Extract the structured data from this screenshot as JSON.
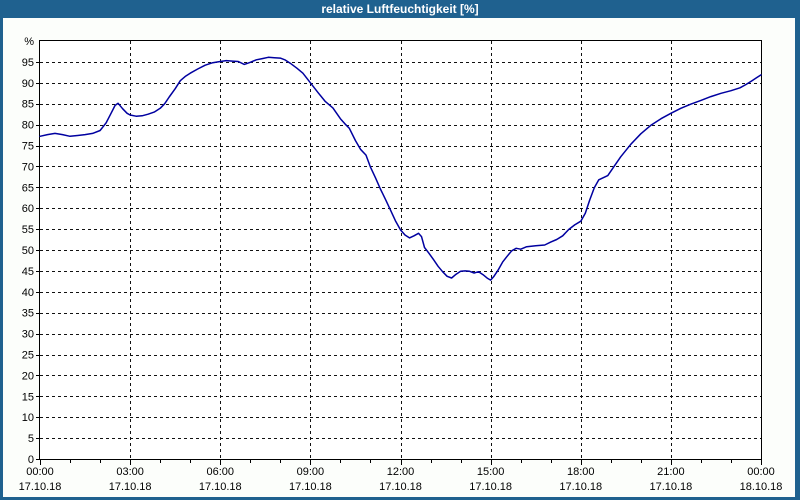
{
  "title": "relative Luftfeuchtigkeit [%]",
  "colors": {
    "titlebar": "#1f618f",
    "frame": "#1f618f",
    "window_bg": "#fcfefb",
    "plot_bg": "#ffffff",
    "grid": "#111111",
    "axis": "#000000",
    "line": "#0000a0",
    "title_text": "#ffffff"
  },
  "chart_data": {
    "type": "line",
    "title": "relative Luftfeuchtigkeit [%]",
    "xlabel": "",
    "ylabel": "%",
    "ylim": [
      0,
      100
    ],
    "xlim_hours": [
      0,
      24
    ],
    "grid": "dashed black: horizontal every 5 units, vertical every 3 hours",
    "legend": "none",
    "y_ticks": [
      0,
      5,
      10,
      15,
      20,
      25,
      30,
      35,
      40,
      45,
      50,
      55,
      60,
      65,
      70,
      75,
      80,
      85,
      90,
      95
    ],
    "x_ticks": [
      {
        "hour": 0,
        "time": "00:00",
        "date": "17.10.18"
      },
      {
        "hour": 3,
        "time": "03:00",
        "date": "17.10.18"
      },
      {
        "hour": 6,
        "time": "06:00",
        "date": "17.10.18"
      },
      {
        "hour": 9,
        "time": "09:00",
        "date": "17.10.18"
      },
      {
        "hour": 12,
        "time": "12:00",
        "date": "17.10.18"
      },
      {
        "hour": 15,
        "time": "15:00",
        "date": "17.10.18"
      },
      {
        "hour": 18,
        "time": "18:00",
        "date": "17.10.18"
      },
      {
        "hour": 21,
        "time": "21:00",
        "date": "17.10.18"
      },
      {
        "hour": 24,
        "time": "00:00",
        "date": "18.10.18"
      }
    ],
    "series": [
      {
        "name": "relative Luftfeuchtigkeit",
        "unit": "%",
        "color": "#0000a0",
        "points": [
          [
            0.0,
            77.2
          ],
          [
            0.25,
            77.6
          ],
          [
            0.5,
            77.9
          ],
          [
            0.75,
            77.6
          ],
          [
            1.0,
            77.2
          ],
          [
            1.25,
            77.4
          ],
          [
            1.5,
            77.6
          ],
          [
            1.75,
            77.9
          ],
          [
            2.0,
            78.6
          ],
          [
            2.2,
            80.4
          ],
          [
            2.35,
            82.5
          ],
          [
            2.5,
            84.6
          ],
          [
            2.6,
            85.1
          ],
          [
            2.75,
            83.8
          ],
          [
            2.9,
            82.7
          ],
          [
            3.0,
            82.3
          ],
          [
            3.2,
            82.0
          ],
          [
            3.4,
            82.1
          ],
          [
            3.6,
            82.5
          ],
          [
            3.8,
            83.0
          ],
          [
            4.0,
            83.9
          ],
          [
            4.15,
            85.0
          ],
          [
            4.3,
            86.6
          ],
          [
            4.5,
            88.6
          ],
          [
            4.67,
            90.5
          ],
          [
            4.85,
            91.6
          ],
          [
            5.0,
            92.3
          ],
          [
            5.25,
            93.3
          ],
          [
            5.5,
            94.2
          ],
          [
            5.75,
            94.8
          ],
          [
            6.0,
            95.1
          ],
          [
            6.2,
            95.3
          ],
          [
            6.4,
            95.2
          ],
          [
            6.6,
            95.1
          ],
          [
            6.8,
            94.4
          ],
          [
            7.0,
            94.9
          ],
          [
            7.2,
            95.5
          ],
          [
            7.4,
            95.8
          ],
          [
            7.6,
            96.1
          ],
          [
            7.8,
            96.0
          ],
          [
            8.0,
            95.9
          ],
          [
            8.15,
            95.5
          ],
          [
            8.33,
            94.7
          ],
          [
            8.55,
            93.5
          ],
          [
            8.75,
            92.3
          ],
          [
            9.0,
            90.0
          ],
          [
            9.25,
            87.7
          ],
          [
            9.5,
            85.5
          ],
          [
            9.75,
            84.0
          ],
          [
            10.0,
            81.4
          ],
          [
            10.15,
            80.2
          ],
          [
            10.3,
            79.1
          ],
          [
            10.5,
            76.2
          ],
          [
            10.67,
            74.1
          ],
          [
            10.85,
            72.7
          ],
          [
            11.0,
            69.8
          ],
          [
            11.17,
            67.2
          ],
          [
            11.33,
            64.6
          ],
          [
            11.5,
            62.1
          ],
          [
            11.67,
            59.5
          ],
          [
            11.83,
            57.0
          ],
          [
            12.0,
            54.8
          ],
          [
            12.15,
            53.6
          ],
          [
            12.3,
            52.9
          ],
          [
            12.45,
            53.4
          ],
          [
            12.6,
            54.0
          ],
          [
            12.7,
            53.2
          ],
          [
            12.8,
            50.6
          ],
          [
            12.95,
            49.2
          ],
          [
            13.1,
            47.7
          ],
          [
            13.25,
            46.1
          ],
          [
            13.4,
            44.8
          ],
          [
            13.55,
            43.7
          ],
          [
            13.7,
            43.3
          ],
          [
            13.85,
            44.2
          ],
          [
            14.0,
            44.9
          ],
          [
            14.15,
            45.0
          ],
          [
            14.3,
            44.9
          ],
          [
            14.45,
            44.5
          ],
          [
            14.6,
            44.8
          ],
          [
            14.75,
            44.1
          ],
          [
            14.9,
            43.2
          ],
          [
            15.0,
            42.8
          ],
          [
            15.1,
            43.6
          ],
          [
            15.25,
            45.2
          ],
          [
            15.4,
            47.1
          ],
          [
            15.55,
            48.5
          ],
          [
            15.7,
            49.8
          ],
          [
            15.85,
            50.4
          ],
          [
            16.0,
            50.2
          ],
          [
            16.2,
            50.8
          ],
          [
            16.5,
            51.0
          ],
          [
            16.8,
            51.2
          ],
          [
            17.0,
            51.9
          ],
          [
            17.2,
            52.5
          ],
          [
            17.4,
            53.4
          ],
          [
            17.6,
            54.9
          ],
          [
            17.8,
            56.0
          ],
          [
            18.0,
            56.9
          ],
          [
            18.15,
            58.8
          ],
          [
            18.3,
            62.0
          ],
          [
            18.45,
            64.9
          ],
          [
            18.6,
            66.8
          ],
          [
            18.75,
            67.3
          ],
          [
            18.9,
            67.8
          ],
          [
            19.1,
            69.9
          ],
          [
            19.33,
            72.3
          ],
          [
            19.67,
            75.3
          ],
          [
            20.0,
            77.8
          ],
          [
            20.33,
            79.8
          ],
          [
            20.67,
            81.4
          ],
          [
            21.0,
            82.7
          ],
          [
            21.33,
            83.9
          ],
          [
            21.67,
            84.9
          ],
          [
            22.0,
            85.8
          ],
          [
            22.33,
            86.7
          ],
          [
            22.67,
            87.5
          ],
          [
            23.0,
            88.1
          ],
          [
            23.3,
            88.8
          ],
          [
            23.5,
            89.6
          ],
          [
            23.7,
            90.5
          ],
          [
            23.85,
            91.2
          ],
          [
            24.0,
            91.9
          ]
        ]
      }
    ]
  }
}
